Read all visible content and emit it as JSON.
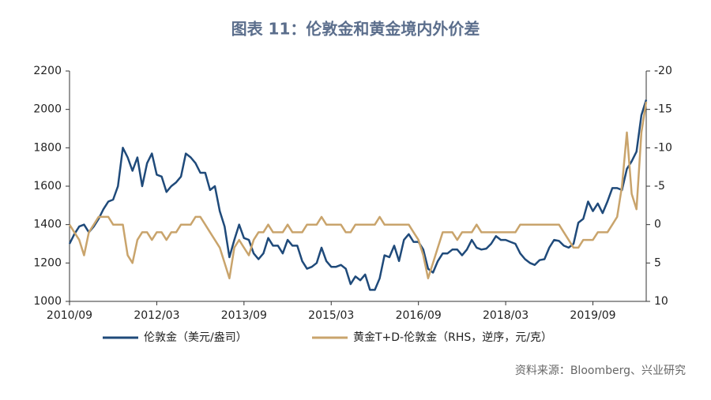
{
  "chart_data": {
    "type": "line",
    "title": "图表 11：伦敦金和黄金境内外价差",
    "source": "资料来源：Bloomberg、兴业研究",
    "x": [
      "2010/09",
      "2010/10",
      "2010/11",
      "2010/12",
      "2011/01",
      "2011/02",
      "2011/03",
      "2011/04",
      "2011/05",
      "2011/06",
      "2011/07",
      "2011/08",
      "2011/09",
      "2011/10",
      "2011/11",
      "2011/12",
      "2012/01",
      "2012/02",
      "2012/03",
      "2012/04",
      "2012/05",
      "2012/06",
      "2012/07",
      "2012/08",
      "2012/09",
      "2012/10",
      "2012/11",
      "2012/12",
      "2013/01",
      "2013/02",
      "2013/03",
      "2013/04",
      "2013/05",
      "2013/06",
      "2013/07",
      "2013/08",
      "2013/09",
      "2013/10",
      "2013/11",
      "2013/12",
      "2014/01",
      "2014/02",
      "2014/03",
      "2014/04",
      "2014/05",
      "2014/06",
      "2014/07",
      "2014/08",
      "2014/09",
      "2014/10",
      "2014/11",
      "2014/12",
      "2015/01",
      "2015/02",
      "2015/03",
      "2015/04",
      "2015/05",
      "2015/06",
      "2015/07",
      "2015/08",
      "2015/09",
      "2015/10",
      "2015/11",
      "2015/12",
      "2016/01",
      "2016/02",
      "2016/03",
      "2016/04",
      "2016/05",
      "2016/06",
      "2016/07",
      "2016/08",
      "2016/09",
      "2016/10",
      "2016/11",
      "2016/12",
      "2017/01",
      "2017/02",
      "2017/03",
      "2017/04",
      "2017/05",
      "2017/06",
      "2017/07",
      "2017/08",
      "2017/09",
      "2017/10",
      "2017/11",
      "2017/12",
      "2018/01",
      "2018/02",
      "2018/03",
      "2018/04",
      "2018/05",
      "2018/06",
      "2018/07",
      "2018/08",
      "2018/09",
      "2018/10",
      "2018/11",
      "2018/12",
      "2019/01",
      "2019/02",
      "2019/03",
      "2019/04",
      "2019/05",
      "2019/06",
      "2019/07",
      "2019/08",
      "2019/09",
      "2019/10",
      "2019/11",
      "2019/12",
      "2020/01",
      "2020/02",
      "2020/03",
      "2020/04",
      "2020/05",
      "2020/06",
      "2020/07",
      "2020/08"
    ],
    "series": [
      {
        "name": "伦敦金（美元/盎司）",
        "color": "#1f4a7a",
        "values": [
          1300,
          1350,
          1390,
          1400,
          1360,
          1390,
          1430,
          1480,
          1520,
          1530,
          1600,
          1800,
          1750,
          1680,
          1750,
          1600,
          1720,
          1770,
          1660,
          1650,
          1570,
          1600,
          1620,
          1650,
          1770,
          1750,
          1720,
          1670,
          1670,
          1580,
          1600,
          1470,
          1390,
          1230,
          1320,
          1400,
          1330,
          1320,
          1250,
          1220,
          1250,
          1330,
          1290,
          1290,
          1250,
          1320,
          1290,
          1290,
          1210,
          1170,
          1180,
          1200,
          1280,
          1210,
          1180,
          1180,
          1190,
          1170,
          1090,
          1130,
          1110,
          1140,
          1060,
          1060,
          1120,
          1240,
          1230,
          1290,
          1210,
          1320,
          1350,
          1310,
          1310,
          1270,
          1170,
          1150,
          1210,
          1250,
          1250,
          1270,
          1270,
          1240,
          1270,
          1320,
          1280,
          1270,
          1275,
          1300,
          1340,
          1320,
          1320,
          1310,
          1300,
          1250,
          1220,
          1200,
          1190,
          1215,
          1220,
          1280,
          1320,
          1315,
          1290,
          1280,
          1300,
          1410,
          1430,
          1520,
          1470,
          1510,
          1460,
          1520,
          1590,
          1590,
          1580,
          1690,
          1730,
          1780,
          1970,
          2050
        ]
      },
      {
        "name": "黄金T+D-伦敦金（RHS，逆序，元/克）",
        "color": "#c9a46c",
        "axis": "y2",
        "values": [
          0,
          1,
          2,
          4,
          1,
          0,
          -1,
          -1,
          -1,
          0,
          0,
          0,
          4,
          5,
          2,
          1,
          1,
          2,
          1,
          1,
          2,
          1,
          1,
          0,
          0,
          0,
          -1,
          -1,
          0,
          1,
          2,
          3,
          5,
          7,
          3,
          2,
          3,
          4,
          2,
          1,
          1,
          0,
          1,
          1,
          1,
          0,
          1,
          1,
          1,
          0,
          0,
          0,
          -1,
          0,
          0,
          0,
          0,
          1,
          1,
          0,
          0,
          0,
          0,
          0,
          -1,
          0,
          0,
          0,
          0,
          0,
          0,
          1,
          2,
          4,
          7,
          5,
          3,
          1,
          1,
          1,
          2,
          1,
          1,
          1,
          0,
          1,
          1,
          1,
          1,
          1,
          1,
          1,
          1,
          0,
          0,
          0,
          0,
          0,
          0,
          0,
          0,
          0,
          1,
          2,
          3,
          3,
          2,
          2,
          2,
          1,
          1,
          1,
          0,
          -1,
          -5,
          -12,
          -4,
          -2,
          -12,
          -16
        ]
      }
    ],
    "xticks": [
      "2010/09",
      "2012/03",
      "2013/09",
      "2015/03",
      "2016/09",
      "2018/03",
      "2019/09"
    ],
    "ylim": [
      1000,
      2200
    ],
    "yticks": [
      1000,
      1200,
      1400,
      1600,
      1800,
      2000,
      2200
    ],
    "y2lim": [
      10,
      -20
    ],
    "y2ticks": [
      10,
      5,
      0,
      -5,
      -10,
      -15,
      -20
    ],
    "legend": "bottom"
  }
}
